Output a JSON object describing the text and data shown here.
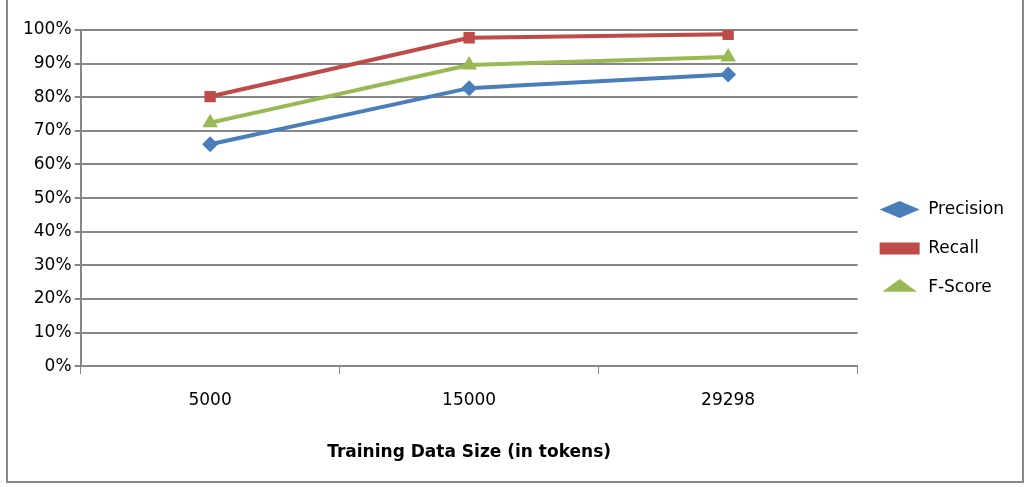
{
  "chart_data": {
    "type": "line",
    "xlabel": "Training Data Size (in tokens)",
    "categories": [
      "5000",
      "15000",
      "29298"
    ],
    "series": [
      {
        "name": "Precision",
        "color": "#4a7ebb",
        "marker": "diamond",
        "values": [
          66,
          82.7,
          86.8
        ]
      },
      {
        "name": "Recall",
        "color": "#be4b48",
        "marker": "square",
        "values": [
          80.2,
          97.7,
          98.7
        ]
      },
      {
        "name": "F-Score",
        "color": "#98b954",
        "marker": "triangle",
        "values": [
          72.4,
          89.6,
          92
        ]
      }
    ],
    "ylim": [
      0,
      100
    ],
    "yticks": [
      {
        "value": 0,
        "label": "0%"
      },
      {
        "value": 10,
        "label": "10%"
      },
      {
        "value": 20,
        "label": "20%"
      },
      {
        "value": 30,
        "label": "30%"
      },
      {
        "value": 40,
        "label": "40%"
      },
      {
        "value": 50,
        "label": "50%"
      },
      {
        "value": 60,
        "label": "60%"
      },
      {
        "value": 70,
        "label": "70%"
      },
      {
        "value": 80,
        "label": "80%"
      },
      {
        "value": 90,
        "label": "90%"
      },
      {
        "value": 100,
        "label": "100%"
      }
    ],
    "grid": "y",
    "legend": "right",
    "line_style": "solid"
  }
}
